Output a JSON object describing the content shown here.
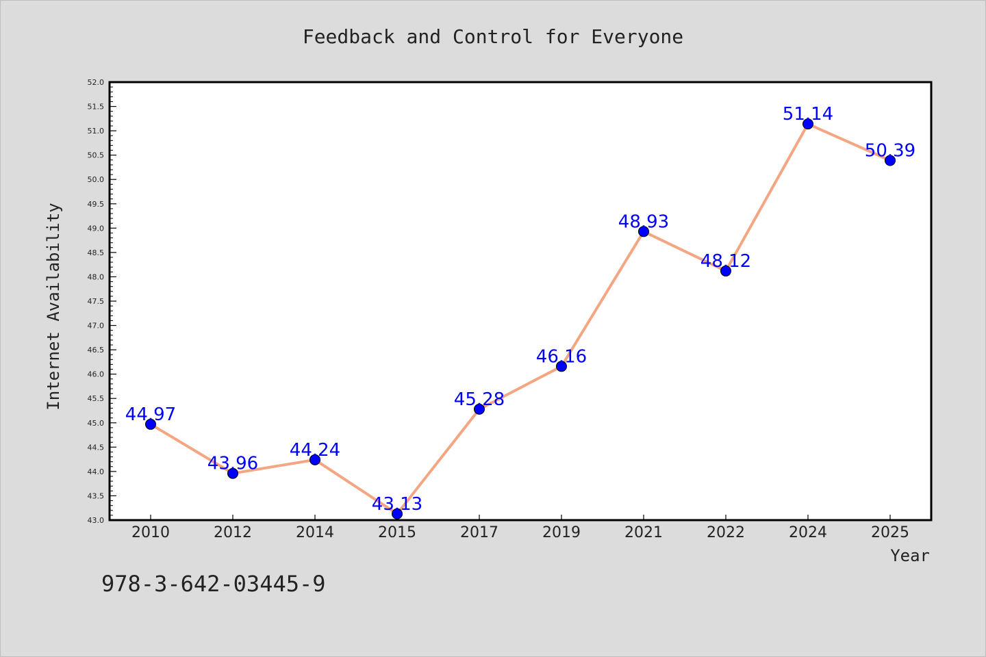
{
  "chart_data": {
    "type": "line",
    "title": "Feedback and Control for Everyone",
    "xlabel": "Year",
    "ylabel": "Internet Availability",
    "categories": [
      "2010",
      "2012",
      "2014",
      "2015",
      "2017",
      "2019",
      "2021",
      "2022",
      "2024",
      "2025"
    ],
    "series": [
      {
        "values": [
          44.97,
          43.96,
          44.24,
          43.13,
          45.28,
          46.16,
          48.93,
          48.12,
          51.14,
          50.39
        ],
        "line_color": "#f4a582",
        "marker_color": "#0000ff"
      }
    ],
    "data_labels": [
      "44.97",
      "43.96",
      "44.24",
      "43.13",
      "45.28",
      "46.16",
      "48.93",
      "48.12",
      "51.14",
      "50.39"
    ],
    "ylim": [
      43.0,
      52.0
    ],
    "yticks": [
      "43.0",
      "43.5",
      "44.0",
      "44.5",
      "45.0",
      "45.5",
      "46.0",
      "46.5",
      "47.0",
      "47.5",
      "48.0",
      "48.5",
      "49.0",
      "49.5",
      "50.0",
      "50.5",
      "51.0",
      "51.5",
      "52.0"
    ],
    "grid": false,
    "legend": "none",
    "data_label_color": "#0000ff",
    "background_color": "#dcdcdc",
    "plot_background_color": "#ffffff"
  },
  "footer_code": "978-3-642-03445-9"
}
